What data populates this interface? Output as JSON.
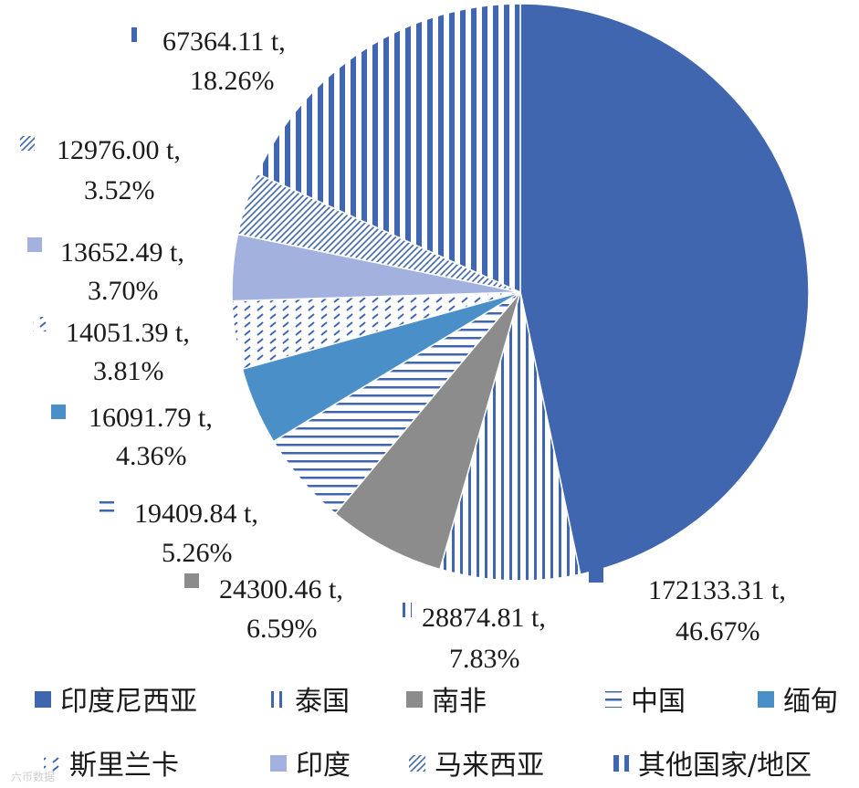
{
  "chart_data": {
    "type": "pie",
    "title": "",
    "unit": "t",
    "slices": [
      {
        "name": "印度尼西亚",
        "value": 172133.31,
        "value_label": "172133.31 t,",
        "percent_label": "46.67%",
        "fill": "solid",
        "color": "#4166b0"
      },
      {
        "name": "泰国",
        "value": 28874.81,
        "value_label": "28874.81 t,",
        "percent_label": "7.83%",
        "fill": "vlines",
        "color": "#4166b0"
      },
      {
        "name": "南非",
        "value": 24300.46,
        "value_label": "24300.46 t,",
        "percent_label": "6.59%",
        "fill": "solid",
        "color": "#8c8c8c"
      },
      {
        "name": "中国",
        "value": 19409.84,
        "value_label": "19409.84 t,",
        "percent_label": "5.26%",
        "fill": "hlines",
        "color": "#4166b0"
      },
      {
        "name": "缅甸",
        "value": 16091.79,
        "value_label": "16091.79 t,",
        "percent_label": "4.36%",
        "fill": "solid",
        "color": "#4a8fc8"
      },
      {
        "name": "斯里兰卡",
        "value": 14051.39,
        "value_label": "14051.39 t,",
        "percent_label": "3.81%",
        "fill": "dashes",
        "color": "#4166b0"
      },
      {
        "name": "印度",
        "value": 13652.49,
        "value_label": "13652.49 t,",
        "percent_label": "3.70%",
        "fill": "solid",
        "color": "#a3b1df"
      },
      {
        "name": "马来西亚",
        "value": 12976.0,
        "value_label": "12976.00 t,",
        "percent_label": "3.52%",
        "fill": "diag",
        "color": "#4166b0"
      },
      {
        "name": "其他国家/地区",
        "value": 67364.11,
        "value_label": "67364.11 t,",
        "percent_label": "18.26%",
        "fill": "vbars",
        "color": "#4166b0"
      }
    ],
    "legend": {
      "placement": "bottom",
      "entries": [
        "印度尼西亚",
        "泰国",
        "南非",
        "中国",
        "缅甸",
        "斯里兰卡",
        "印度",
        "马来西亚",
        "其他国家/地区"
      ]
    }
  },
  "watermark": "六币数据"
}
